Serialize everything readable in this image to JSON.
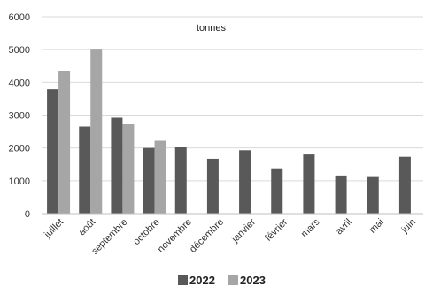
{
  "chart_data": {
    "type": "bar",
    "unit_label": "tonnes",
    "categories": [
      "juillet",
      "août",
      "septembre",
      "octobre",
      "novembre",
      "décembre",
      "janvier",
      "février",
      "mars",
      "avril",
      "mai",
      "juin"
    ],
    "series": [
      {
        "name": "2022",
        "color": "#595959",
        "values": [
          3790,
          2650,
          2920,
          2000,
          2040,
          1670,
          1930,
          1380,
          1800,
          1160,
          1140,
          1730
        ]
      },
      {
        "name": "2023",
        "color": "#a6a6a6",
        "values": [
          4340,
          5000,
          2720,
          2220,
          null,
          null,
          null,
          null,
          null,
          null,
          null,
          null
        ]
      }
    ],
    "ylim": [
      0,
      6000
    ],
    "yticks": [
      0,
      1000,
      2000,
      3000,
      4000,
      5000,
      6000
    ],
    "grid": true,
    "legend_position": "bottom"
  }
}
